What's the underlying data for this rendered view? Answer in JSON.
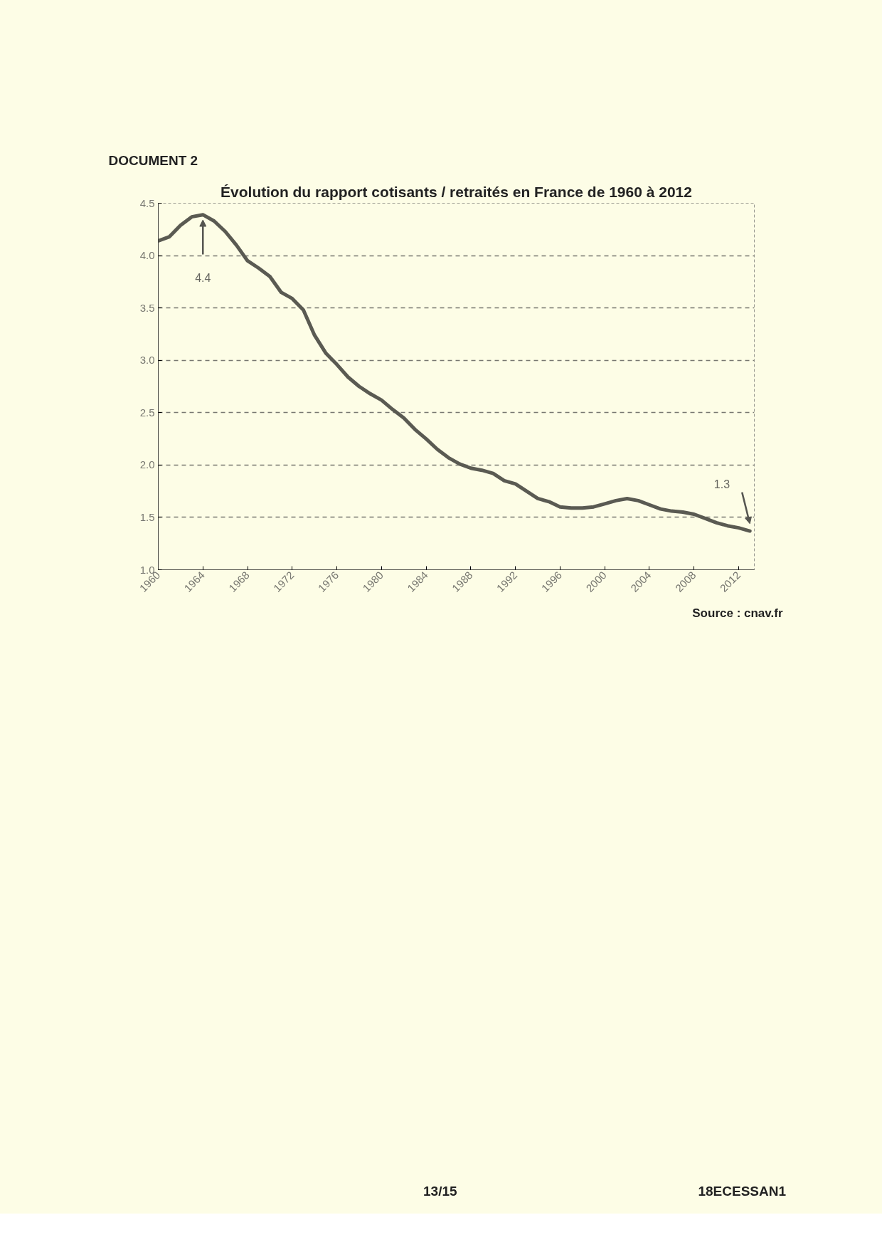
{
  "chart_data": {
    "type": "line",
    "title": "Évolution du rapport cotisants / retraités en France de 1960 à 2012",
    "annotations": [
      "DOCUMENT 2",
      "4.4",
      "1.3",
      "Source : cnav.fr",
      "13/15",
      "18ECESSAN1"
    ],
    "x": [
      1960,
      1961,
      1962,
      1963,
      1964,
      1965,
      1966,
      1967,
      1968,
      1969,
      1970,
      1971,
      1972,
      1973,
      1974,
      1975,
      1976,
      1977,
      1978,
      1979,
      1980,
      1981,
      1982,
      1983,
      1984,
      1985,
      1986,
      1987,
      1988,
      1989,
      1990,
      1991,
      1992,
      1993,
      1994,
      1995,
      1996,
      1997,
      1998,
      1999,
      2000,
      2001,
      2002,
      2003,
      2004,
      2005,
      2006,
      2007,
      2008,
      2009,
      2010,
      2011,
      2012,
      2013
    ],
    "series": [
      {
        "color": "#5a5a52",
        "values": [
          4.14,
          4.18,
          4.29,
          4.37,
          4.39,
          4.33,
          4.23,
          4.1,
          3.95,
          3.88,
          3.8,
          3.65,
          3.59,
          3.48,
          3.24,
          3.07,
          2.96,
          2.84,
          2.75,
          2.68,
          2.62,
          2.53,
          2.45,
          2.34,
          2.25,
          2.15,
          2.07,
          2.01,
          1.97,
          1.95,
          1.92,
          1.85,
          1.82,
          1.75,
          1.68,
          1.65,
          1.6,
          1.59,
          1.59,
          1.6,
          1.63,
          1.66,
          1.68,
          1.66,
          1.62,
          1.58,
          1.56,
          1.55,
          1.53,
          1.49,
          1.45,
          1.42,
          1.4,
          1.37
        ]
      }
    ],
    "xlim": [
      1960,
      2013.4
    ],
    "xticks": [
      1960,
      1964,
      1968,
      1972,
      1976,
      1980,
      1984,
      1988,
      1992,
      1996,
      2000,
      2004,
      2008,
      2012
    ],
    "ylim": [
      1.0,
      4.5
    ],
    "yticks": [
      {
        "value": 1.0,
        "label": "1.0"
      },
      1.5,
      {
        "value": 2.0,
        "label": "2.0"
      },
      2.5,
      {
        "value": 3.0,
        "label": "3.0"
      },
      3.5,
      {
        "value": 4.0,
        "label": "4.0"
      },
      4.5
    ],
    "grid": "y",
    "line_style": "solid",
    "marker": "none"
  }
}
